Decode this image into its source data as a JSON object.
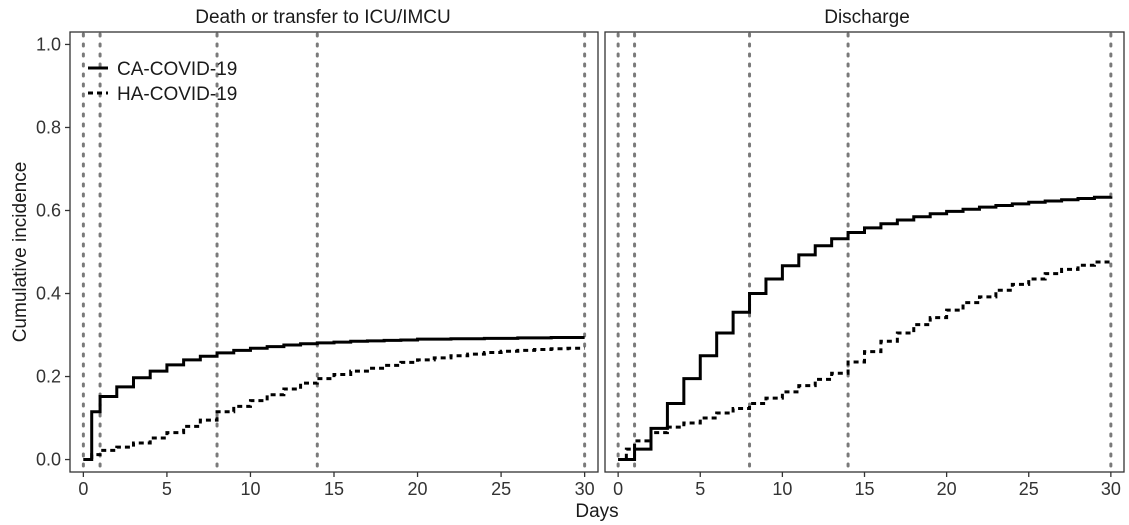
{
  "chart_data": {
    "type": "line",
    "step": true,
    "xlabel": "Days",
    "ylabel": "Cumulative incidence",
    "xlim": [
      -0.8,
      30.8
    ],
    "ylim": [
      -0.03,
      1.03
    ],
    "x_ticks": [
      0,
      5,
      10,
      15,
      20,
      25,
      30
    ],
    "y_ticks": [
      0.0,
      0.2,
      0.4,
      0.6,
      0.8,
      1.0
    ],
    "x_tick_labels": [
      "0",
      "5",
      "10",
      "15",
      "20",
      "25",
      "30"
    ],
    "y_tick_labels": [
      "0.0",
      "0.2",
      "0.4",
      "0.6",
      "0.8",
      "1.0"
    ],
    "reference_lines_x": [
      0,
      1,
      8,
      14,
      30
    ],
    "grid": false,
    "legend": {
      "position": "top-left",
      "entries": [
        {
          "label": "CA-COVID-19",
          "line_style": "solid"
        },
        {
          "label": "HA-COVID-19",
          "line_style": "dashed"
        }
      ]
    },
    "colors": {
      "series": "#000000",
      "reference_lines": "#7a7a7a"
    },
    "panels": [
      {
        "title": "Death or transfer to ICU/IMCU",
        "series": [
          {
            "line_style": "solid",
            "x": [
              0,
              0.5,
              1,
              2,
              3,
              4,
              5,
              6,
              7,
              8,
              9,
              10,
              11,
              12,
              13,
              14,
              15,
              16,
              17,
              18,
              19,
              20,
              22,
              24,
              26,
              28,
              30
            ],
            "y": [
              0,
              0.115,
              0.152,
              0.175,
              0.197,
              0.213,
              0.228,
              0.24,
              0.249,
              0.257,
              0.263,
              0.268,
              0.272,
              0.276,
              0.279,
              0.281,
              0.283,
              0.285,
              0.286,
              0.287,
              0.288,
              0.29,
              0.291,
              0.292,
              0.293,
              0.294,
              0.294
            ]
          },
          {
            "line_style": "dashed",
            "x": [
              0,
              0.5,
              1,
              2,
              3,
              4,
              5,
              6,
              7,
              8,
              9,
              10,
              11,
              12,
              13,
              14,
              15,
              16,
              17,
              18,
              19,
              20,
              21,
              22,
              23,
              24,
              25,
              26,
              27,
              28,
              29,
              30
            ],
            "y": [
              0,
              0.012,
              0.022,
              0.03,
              0.04,
              0.052,
              0.065,
              0.08,
              0.095,
              0.115,
              0.128,
              0.142,
              0.156,
              0.17,
              0.184,
              0.195,
              0.205,
              0.213,
              0.22,
              0.227,
              0.234,
              0.24,
              0.245,
              0.25,
              0.254,
              0.258,
              0.261,
              0.263,
              0.265,
              0.267,
              0.268,
              0.268
            ]
          }
        ]
      },
      {
        "title": "Discharge",
        "series": [
          {
            "line_style": "solid",
            "x": [
              0,
              1,
              2,
              3,
              4,
              5,
              6,
              7,
              8,
              9,
              10,
              11,
              12,
              13,
              14,
              15,
              16,
              17,
              18,
              19,
              20,
              21,
              22,
              23,
              24,
              25,
              26,
              27,
              28,
              29,
              30
            ],
            "y": [
              0,
              0.025,
              0.075,
              0.135,
              0.195,
              0.25,
              0.305,
              0.355,
              0.4,
              0.435,
              0.467,
              0.493,
              0.515,
              0.532,
              0.547,
              0.558,
              0.568,
              0.577,
              0.585,
              0.592,
              0.598,
              0.603,
              0.608,
              0.612,
              0.616,
              0.62,
              0.623,
              0.626,
              0.629,
              0.632,
              0.634
            ]
          },
          {
            "line_style": "dashed",
            "x": [
              0,
              0.5,
              1,
              2,
              3,
              4,
              5,
              6,
              7,
              8,
              9,
              10,
              11,
              12,
              13,
              14,
              15,
              16,
              17,
              18,
              19,
              20,
              21,
              22,
              23,
              24,
              25,
              26,
              27,
              28,
              29,
              30
            ],
            "y": [
              0,
              0.025,
              0.045,
              0.065,
              0.078,
              0.088,
              0.1,
              0.112,
              0.123,
              0.135,
              0.148,
              0.163,
              0.178,
              0.193,
              0.208,
              0.235,
              0.26,
              0.285,
              0.305,
              0.325,
              0.342,
              0.36,
              0.378,
              0.392,
              0.408,
              0.422,
              0.435,
              0.448,
              0.458,
              0.468,
              0.476,
              0.478
            ]
          }
        ]
      }
    ]
  }
}
